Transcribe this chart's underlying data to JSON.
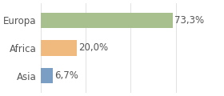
{
  "categories": [
    "Asia",
    "Africa",
    "Europa"
  ],
  "values": [
    6.7,
    20.0,
    73.3
  ],
  "labels": [
    "6,7%",
    "20,0%",
    "73,3%"
  ],
  "bar_colors": [
    "#7b9ec4",
    "#f0b97d",
    "#a8bf8e"
  ],
  "background_color": "#ffffff",
  "xlim": [
    0,
    100
  ],
  "bar_height": 0.55,
  "label_fontsize": 8.5,
  "tick_fontsize": 8.5,
  "grid_color": "#dddddd",
  "grid_linewidth": 0.6,
  "label_color": "#555555"
}
